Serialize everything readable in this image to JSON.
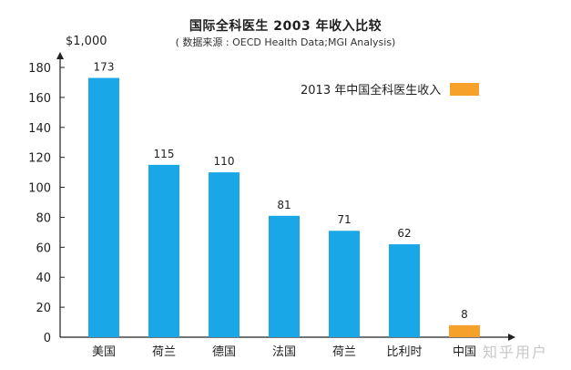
{
  "chart_data": {
    "type": "bar",
    "title": "国际全科医生 2003 年收入比较",
    "subtitle": "( 数据来源 : OECD Health Data;MGI Analysis)",
    "ylabel": "$1,000",
    "xlabel": "",
    "ylim": [
      0,
      180
    ],
    "yticks": [
      0,
      20,
      40,
      60,
      80,
      100,
      120,
      140,
      160,
      180
    ],
    "categories": [
      "美国",
      "荷兰",
      "德国",
      "法国",
      "荷兰",
      "比利时",
      "中国"
    ],
    "values": [
      173,
      115,
      110,
      81,
      71,
      62,
      8
    ],
    "bar_colors": [
      "#1aa7e8",
      "#1aa7e8",
      "#1aa7e8",
      "#1aa7e8",
      "#1aa7e8",
      "#1aa7e8",
      "#f5a12a"
    ],
    "legend": {
      "label": "2013 年中国全科医生收入",
      "color": "#f5a12a",
      "position": "top-right"
    },
    "grid": false
  },
  "watermark": "知乎用户"
}
